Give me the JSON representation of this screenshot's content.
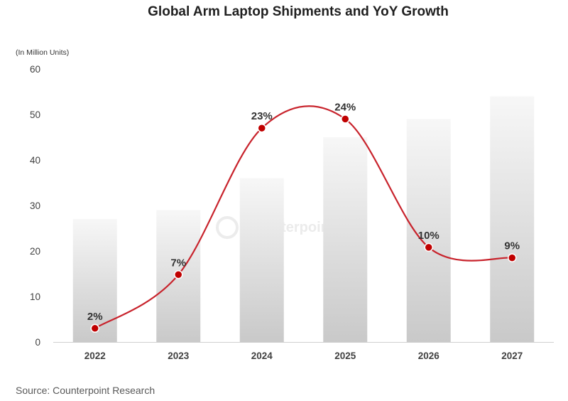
{
  "chart_data": {
    "type": "bar",
    "title": "Global Arm Laptop Shipments and YoY Growth",
    "unit_label": "(In Million Units)",
    "categories": [
      "2022",
      "2023",
      "2024",
      "2025",
      "2026",
      "2027"
    ],
    "series": [
      {
        "values": [
          27,
          29,
          36,
          45,
          49,
          54
        ]
      }
    ],
    "growth_line": {
      "labels": [
        "2%",
        "7%",
        "23%",
        "24%",
        "10%",
        "9%"
      ],
      "plotted_y": [
        3,
        14.8,
        47,
        49,
        20.8,
        18.5
      ]
    },
    "ylim": [
      0,
      60
    ],
    "yticks": [
      0,
      10,
      20,
      30,
      40,
      50,
      60
    ],
    "grid": false,
    "colors": {
      "bar_top": "#f7f7f7",
      "bar_bottom": "#c9c9c9",
      "line": "#c8232c",
      "marker": "#c00000"
    }
  },
  "source": "Source: Counterpoint Research",
  "watermark": "Counterpoint"
}
